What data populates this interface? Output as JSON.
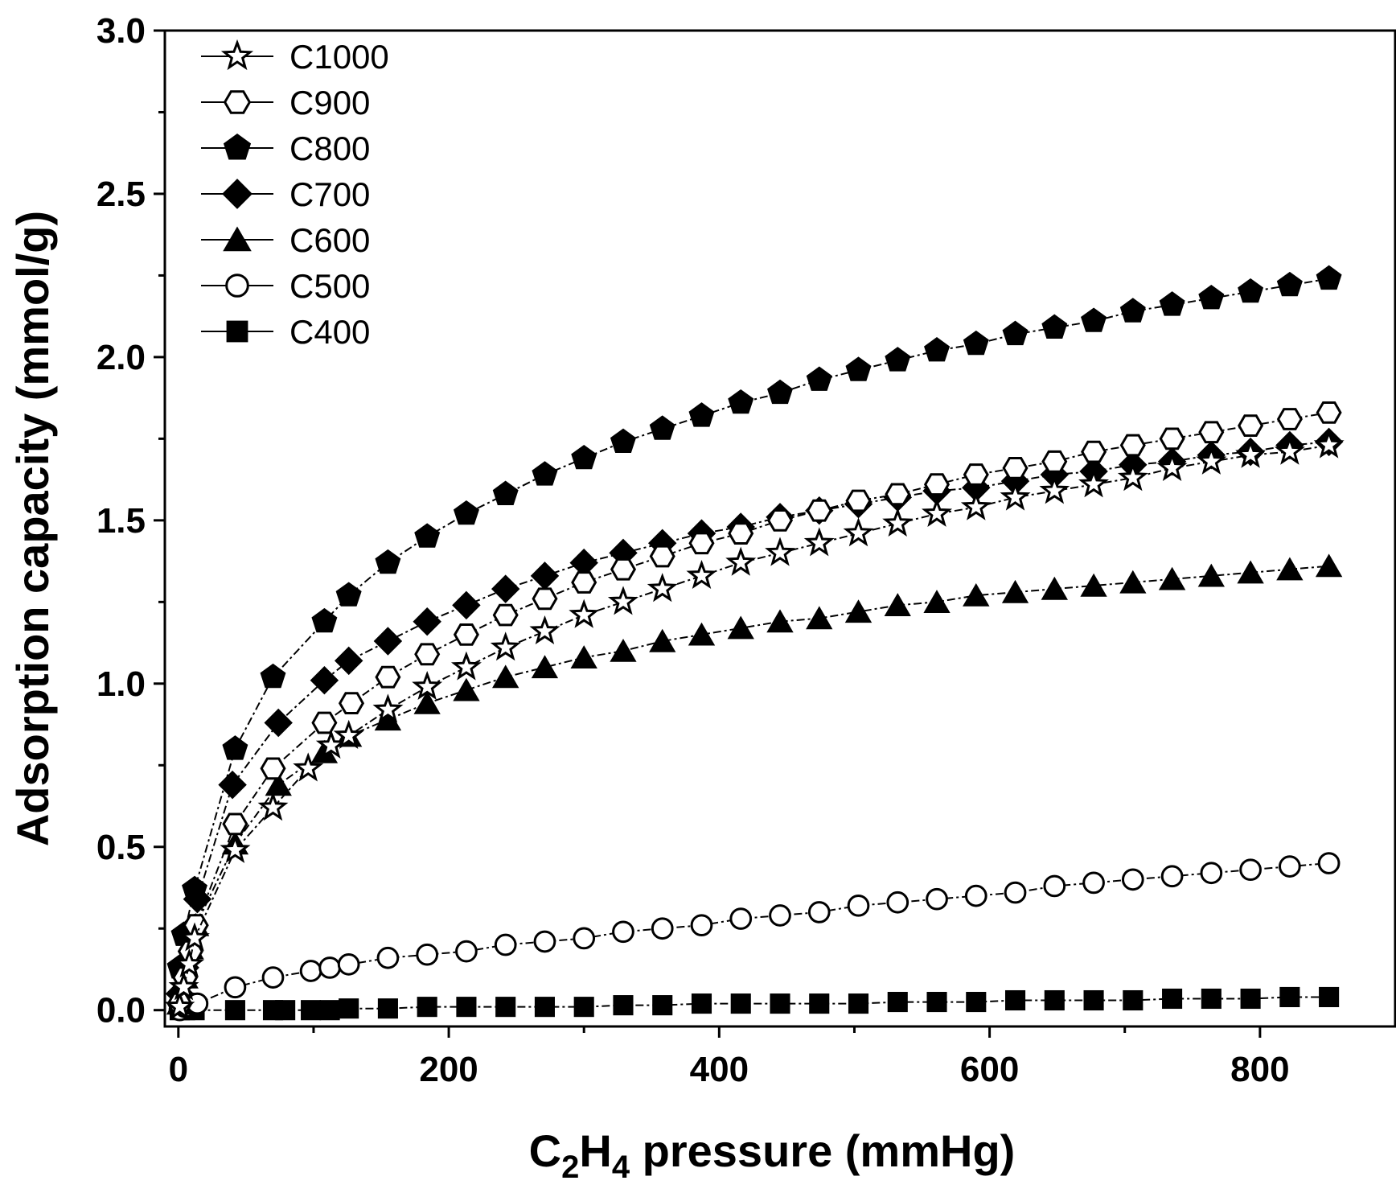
{
  "chart_data": {
    "type": "scatter",
    "title": "",
    "xlabel": {
      "prefix": "C",
      "sub1": "2",
      "mid": "H",
      "sub2": "4",
      "suffix": " pressure (mmHg)"
    },
    "ylabel": "Adsorption capacity (mmol/g)",
    "xlim": [
      -10,
      900
    ],
    "ylim": [
      -0.05,
      3.0
    ],
    "xticks": [
      0,
      200,
      400,
      600,
      800
    ],
    "xtick_labels": [
      "0",
      "200",
      "400",
      "600",
      "800"
    ],
    "yticks": [
      0.0,
      0.5,
      1.0,
      1.5,
      2.0,
      2.5,
      3.0
    ],
    "ytick_labels": [
      "0.0",
      "0.5",
      "1.0",
      "1.5",
      "2.0",
      "2.5",
      "3.0"
    ],
    "legend_position": "top-left",
    "series": [
      {
        "name": "C1000",
        "marker": "star",
        "fill": "#ffffff",
        "x": [
          1,
          4,
          8,
          12,
          42,
          70,
          96,
          113,
          126,
          155,
          184,
          213,
          242,
          271,
          300,
          329,
          358,
          387,
          416,
          445,
          474,
          503,
          532,
          561,
          590,
          619,
          648,
          677,
          706,
          735,
          764,
          793,
          822,
          851
        ],
        "y": [
          0.01,
          0.07,
          0.14,
          0.22,
          0.49,
          0.62,
          0.74,
          0.81,
          0.84,
          0.92,
          0.99,
          1.05,
          1.11,
          1.16,
          1.21,
          1.25,
          1.29,
          1.33,
          1.37,
          1.4,
          1.43,
          1.46,
          1.49,
          1.52,
          1.54,
          1.57,
          1.59,
          1.61,
          1.63,
          1.66,
          1.68,
          1.7,
          1.71,
          1.73
        ]
      },
      {
        "name": "C900",
        "marker": "hexagon",
        "fill": "#ffffff",
        "x": [
          1,
          5,
          9,
          13,
          42,
          70,
          108,
          128,
          155,
          184,
          213,
          242,
          271,
          300,
          329,
          358,
          387,
          416,
          445,
          474,
          503,
          532,
          561,
          590,
          619,
          648,
          677,
          706,
          735,
          764,
          793,
          822,
          851
        ],
        "y": [
          0.02,
          0.1,
          0.18,
          0.26,
          0.57,
          0.74,
          0.88,
          0.94,
          1.02,
          1.09,
          1.15,
          1.21,
          1.26,
          1.31,
          1.35,
          1.39,
          1.43,
          1.46,
          1.5,
          1.53,
          1.56,
          1.58,
          1.61,
          1.64,
          1.66,
          1.68,
          1.71,
          1.73,
          1.75,
          1.77,
          1.79,
          1.81,
          1.83
        ]
      },
      {
        "name": "C800",
        "marker": "pentagon",
        "fill": "#000000",
        "x": [
          1,
          4,
          12,
          42,
          70,
          108,
          126,
          155,
          184,
          213,
          242,
          271,
          300,
          329,
          358,
          387,
          416,
          445,
          474,
          503,
          532,
          561,
          590,
          619,
          648,
          677,
          706,
          735,
          764,
          793,
          822,
          851
        ],
        "y": [
          0.13,
          0.23,
          0.37,
          0.8,
          1.02,
          1.19,
          1.27,
          1.37,
          1.45,
          1.52,
          1.58,
          1.64,
          1.69,
          1.74,
          1.78,
          1.82,
          1.86,
          1.89,
          1.93,
          1.96,
          1.99,
          2.02,
          2.04,
          2.07,
          2.09,
          2.11,
          2.14,
          2.16,
          2.18,
          2.2,
          2.22,
          2.24
        ]
      },
      {
        "name": "C700",
        "marker": "diamond",
        "fill": "#000000",
        "x": [
          1,
          5,
          10,
          14,
          40,
          74,
          108,
          126,
          155,
          184,
          213,
          242,
          271,
          300,
          329,
          358,
          387,
          416,
          445,
          474,
          503,
          532,
          561,
          590,
          619,
          648,
          677,
          706,
          735,
          764,
          793,
          822,
          851
        ],
        "y": [
          0.05,
          0.13,
          0.25,
          0.34,
          0.69,
          0.88,
          1.01,
          1.07,
          1.13,
          1.19,
          1.24,
          1.29,
          1.33,
          1.37,
          1.4,
          1.43,
          1.46,
          1.48,
          1.51,
          1.53,
          1.55,
          1.57,
          1.59,
          1.6,
          1.62,
          1.64,
          1.65,
          1.67,
          1.68,
          1.7,
          1.71,
          1.73,
          1.74
        ]
      },
      {
        "name": "C600",
        "marker": "triangle",
        "fill": "#000000",
        "x": [
          1,
          5,
          9,
          13,
          42,
          74,
          108,
          126,
          155,
          184,
          213,
          242,
          271,
          300,
          329,
          358,
          387,
          416,
          445,
          474,
          503,
          532,
          561,
          590,
          619,
          648,
          677,
          706,
          735,
          764,
          793,
          822,
          851
        ],
        "y": [
          0.02,
          0.1,
          0.19,
          0.26,
          0.51,
          0.69,
          0.79,
          0.84,
          0.89,
          0.94,
          0.98,
          1.02,
          1.05,
          1.08,
          1.1,
          1.13,
          1.15,
          1.17,
          1.19,
          1.2,
          1.22,
          1.24,
          1.25,
          1.27,
          1.28,
          1.29,
          1.3,
          1.31,
          1.32,
          1.33,
          1.34,
          1.35,
          1.36
        ]
      },
      {
        "name": "C500",
        "marker": "circle",
        "fill": "#ffffff",
        "x": [
          1,
          5,
          10,
          14,
          42,
          70,
          98,
          112,
          126,
          155,
          184,
          213,
          242,
          271,
          300,
          329,
          358,
          387,
          416,
          445,
          474,
          503,
          532,
          561,
          590,
          619,
          648,
          677,
          706,
          735,
          764,
          793,
          822,
          851
        ],
        "y": [
          0.0,
          0.01,
          0.02,
          0.02,
          0.07,
          0.1,
          0.12,
          0.13,
          0.14,
          0.16,
          0.17,
          0.18,
          0.2,
          0.21,
          0.22,
          0.24,
          0.25,
          0.26,
          0.28,
          0.29,
          0.3,
          0.32,
          0.33,
          0.34,
          0.35,
          0.36,
          0.38,
          0.39,
          0.4,
          0.41,
          0.42,
          0.43,
          0.44,
          0.45
        ]
      },
      {
        "name": "C400",
        "marker": "square",
        "fill": "#000000",
        "x": [
          1,
          5,
          12,
          42,
          70,
          79,
          98,
          112,
          126,
          155,
          184,
          213,
          242,
          271,
          300,
          329,
          358,
          387,
          416,
          445,
          474,
          503,
          532,
          561,
          590,
          619,
          648,
          677,
          706,
          735,
          764,
          793,
          822,
          851
        ],
        "y": [
          0.0,
          0.0,
          0.0,
          0.0,
          0.0,
          0.0,
          0.0,
          0.0,
          0.005,
          0.005,
          0.01,
          0.01,
          0.01,
          0.01,
          0.01,
          0.015,
          0.015,
          0.02,
          0.02,
          0.02,
          0.02,
          0.02,
          0.025,
          0.025,
          0.025,
          0.03,
          0.03,
          0.03,
          0.03,
          0.035,
          0.035,
          0.035,
          0.04,
          0.04
        ]
      }
    ]
  }
}
